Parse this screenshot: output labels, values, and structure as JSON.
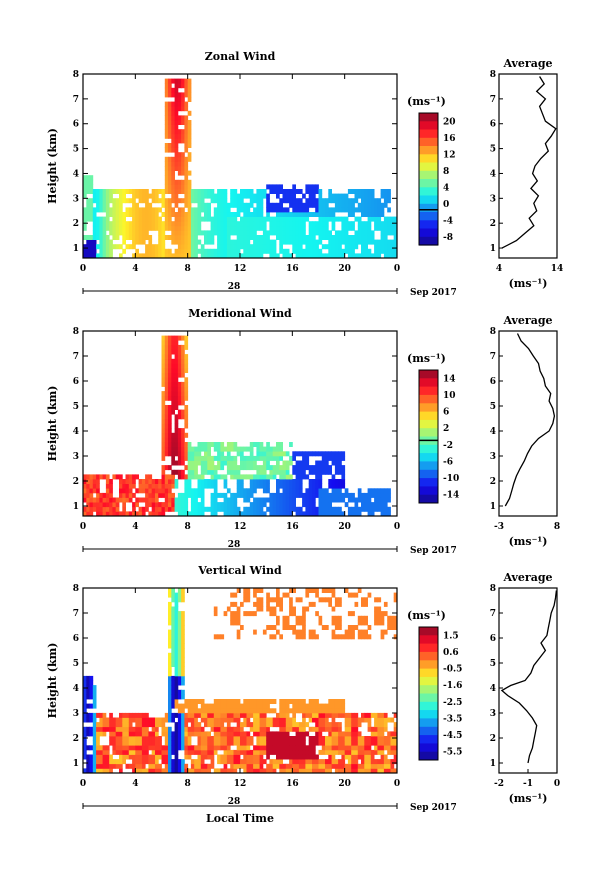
{
  "chart_data": [
    {
      "type": "heatmap",
      "title": "Zonal Wind",
      "ylabel": "Height (km)",
      "ylim": [
        0.6,
        8
      ],
      "xlim": [
        0,
        24
      ],
      "yticks": [
        "1",
        "2",
        "3",
        "4",
        "5",
        "6",
        "7",
        "8"
      ],
      "xticks": [
        "0",
        "4",
        "8",
        "12",
        "16",
        "20",
        "0"
      ],
      "date_day": "28",
      "date_month": "Sep 2017",
      "colorbar": {
        "unit": "(ms⁻¹)",
        "range": [
          -8,
          22
        ],
        "ticks": [
          "20",
          "16",
          "12",
          "8",
          "4",
          "0",
          "-4",
          "-8"
        ],
        "zero_line": 0
      },
      "average": {
        "title": "Average",
        "xlabel": "(ms⁻¹)",
        "xlim": [
          4,
          14
        ],
        "xticks": [
          "4",
          "14"
        ],
        "height": [
          1.0,
          1.3,
          1.6,
          1.9,
          2.2,
          2.5,
          2.8,
          3.1,
          3.4,
          3.7,
          4.0,
          4.3,
          4.6,
          4.9,
          5.2,
          5.5,
          5.8,
          6.1,
          6.4,
          6.7,
          7.0,
          7.3,
          7.6,
          7.9
        ],
        "values": [
          4.5,
          7.0,
          8.5,
          10.0,
          9.2,
          10.5,
          10.0,
          10.8,
          9.5,
          10.6,
          9.8,
          10.2,
          11.2,
          12.5,
          12.0,
          13.0,
          13.8,
          12.0,
          11.5,
          11.0,
          12.0,
          10.5,
          11.8,
          11.0
        ]
      }
    },
    {
      "type": "heatmap",
      "title": "Meridional Wind",
      "ylabel": "Height (km)",
      "ylim": [
        0.6,
        8
      ],
      "xlim": [
        0,
        24
      ],
      "yticks": [
        "1",
        "2",
        "3",
        "4",
        "5",
        "6",
        "7",
        "8"
      ],
      "xticks": [
        "0",
        "4",
        "8",
        "12",
        "16",
        "20",
        "0"
      ],
      "date_day": "28",
      "date_month": "Sep 2017",
      "colorbar": {
        "unit": "(ms⁻¹)",
        "range": [
          -16,
          18
        ],
        "ticks": [
          "14",
          "10",
          "6",
          "2",
          "-2",
          "-6",
          "-10",
          "-14"
        ],
        "zero_line": 0
      },
      "average": {
        "title": "Average",
        "xlabel": "(ms⁻¹)",
        "xlim": [
          -3,
          8
        ],
        "xticks": [
          "-3",
          "8"
        ],
        "height": [
          1.0,
          1.3,
          1.6,
          1.9,
          2.2,
          2.5,
          2.8,
          3.1,
          3.4,
          3.7,
          4.0,
          4.3,
          4.6,
          4.9,
          5.2,
          5.5,
          5.8,
          6.1,
          6.4,
          6.7,
          7.0,
          7.3,
          7.6,
          7.9
        ],
        "values": [
          -1.8,
          -1.0,
          -0.6,
          -0.2,
          0.3,
          1.0,
          1.8,
          2.4,
          3.2,
          4.5,
          6.5,
          7.2,
          7.5,
          7.2,
          6.5,
          6.8,
          5.8,
          5.5,
          4.8,
          4.5,
          3.5,
          2.6,
          1.2,
          0.5
        ]
      }
    },
    {
      "type": "heatmap",
      "title": "Vertical Wind",
      "ylabel": "Height (km)",
      "xlabel": "Local Time",
      "ylim": [
        0.6,
        8
      ],
      "xlim": [
        0,
        24
      ],
      "yticks": [
        "1",
        "2",
        "3",
        "4",
        "5",
        "6",
        "7",
        "8"
      ],
      "xticks": [
        "0",
        "4",
        "8",
        "12",
        "16",
        "20",
        "0"
      ],
      "date_day": "28",
      "date_month": "Sep 2017",
      "colorbar": {
        "unit": "(ms⁻¹)",
        "range": [
          -6,
          2
        ],
        "ticks": [
          "1.5",
          "0.6",
          "-0.5",
          "-1.6",
          "-2.5",
          "-3.5",
          "-4.5",
          "-5.5"
        ]
      },
      "average": {
        "title": "Average",
        "xlabel": "(ms⁻¹)",
        "xlim": [
          -2,
          0
        ],
        "xticks": [
          "-2",
          "-1",
          "0"
        ],
        "height": [
          1.0,
          1.3,
          1.6,
          1.9,
          2.2,
          2.5,
          2.8,
          3.1,
          3.4,
          3.7,
          3.9,
          4.1,
          4.3,
          4.6,
          4.9,
          5.2,
          5.5,
          5.8,
          6.1,
          6.4,
          6.7,
          7.0,
          7.3,
          7.6,
          7.9
        ],
        "values": [
          -1.0,
          -0.95,
          -0.85,
          -0.8,
          -0.75,
          -0.7,
          -0.85,
          -1.05,
          -1.3,
          -1.7,
          -1.9,
          -1.6,
          -1.1,
          -0.9,
          -0.8,
          -0.6,
          -0.4,
          -0.55,
          -0.35,
          -0.3,
          -0.25,
          -0.2,
          -0.1,
          -0.05,
          -0.02
        ]
      }
    }
  ]
}
